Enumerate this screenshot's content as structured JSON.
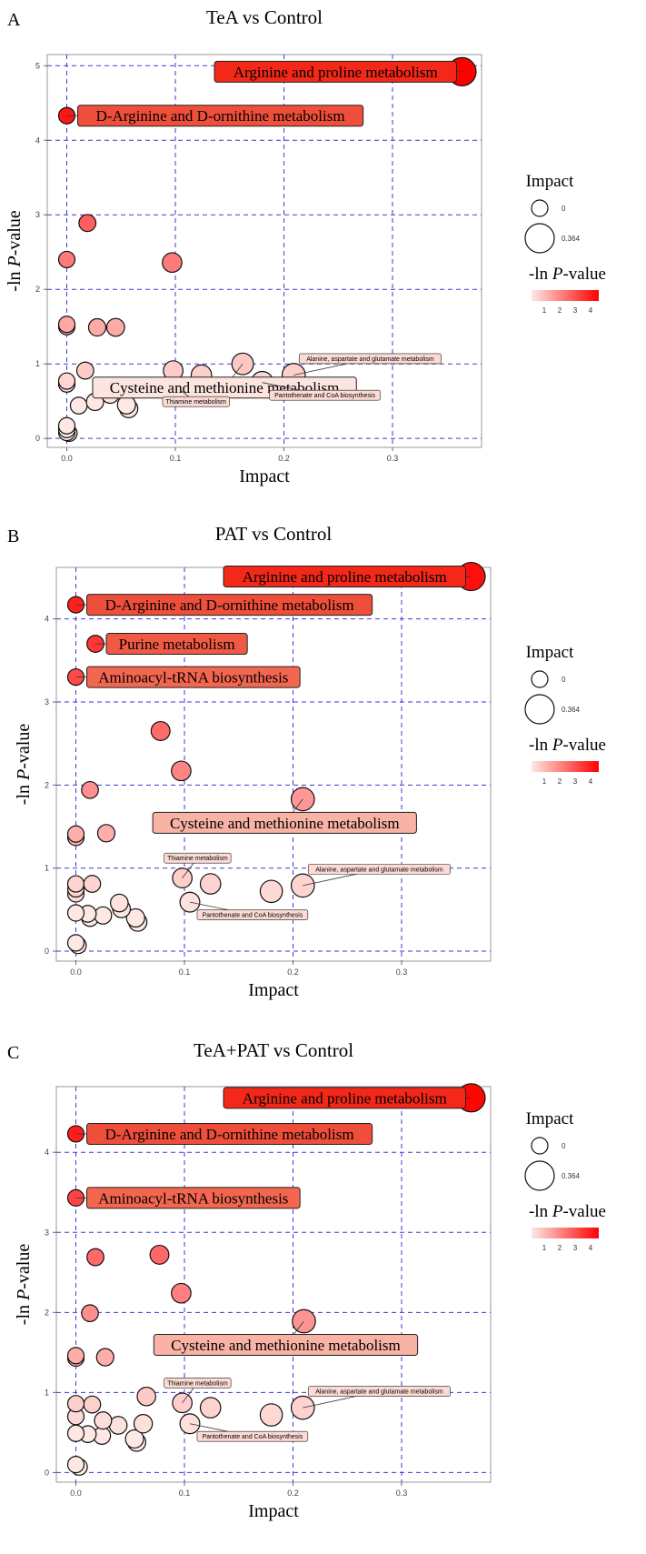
{
  "figure": {
    "legend": {
      "size_title": "Impact",
      "size_values": [
        "0",
        "0.364"
      ],
      "color_title_prefix": "-ln ",
      "color_title_italic": "P",
      "color_title_suffix": "-value",
      "color_ticks": [
        "1",
        "2",
        "3",
        "4"
      ],
      "color_low": "#fde8e4",
      "color_high": "#ff0000"
    },
    "x_axis_label": "Impact",
    "y_axis_label_prefix": "-ln ",
    "y_axis_label_italic": "P",
    "y_axis_label_suffix": "-value"
  },
  "chart_data": [
    {
      "type": "scatter",
      "panel": "A",
      "title": "TeA vs Control",
      "xlabel": "Impact",
      "ylabel": "-ln P-value",
      "xlim": [
        -0.018,
        0.382
      ],
      "ylim": [
        -0.12,
        5.15
      ],
      "xticks": [
        0.0,
        0.1,
        0.2,
        0.3
      ],
      "yticks": [
        0,
        1,
        2,
        3,
        4,
        5
      ],
      "grid": true,
      "legend_position": "right",
      "points": [
        {
          "x": 0.364,
          "y": 4.92
        },
        {
          "x": 0.0,
          "y": 4.33
        },
        {
          "x": 0.019,
          "y": 2.89
        },
        {
          "x": 0.0,
          "y": 2.4
        },
        {
          "x": 0.097,
          "y": 2.36
        },
        {
          "x": 0.0,
          "y": 1.53
        },
        {
          "x": 0.0,
          "y": 1.5
        },
        {
          "x": 0.028,
          "y": 1.49
        },
        {
          "x": 0.045,
          "y": 1.49
        },
        {
          "x": 0.162,
          "y": 1.0
        },
        {
          "x": 0.098,
          "y": 0.91
        },
        {
          "x": 0.017,
          "y": 0.91
        },
        {
          "x": 0.124,
          "y": 0.85
        },
        {
          "x": 0.209,
          "y": 0.85
        },
        {
          "x": 0.18,
          "y": 0.75
        },
        {
          "x": 0.0,
          "y": 0.77
        },
        {
          "x": 0.0,
          "y": 0.73
        },
        {
          "x": 0.105,
          "y": 0.64
        },
        {
          "x": 0.04,
          "y": 0.59
        },
        {
          "x": 0.026,
          "y": 0.49
        },
        {
          "x": 0.011,
          "y": 0.44
        },
        {
          "x": 0.055,
          "y": 0.45
        },
        {
          "x": 0.057,
          "y": 0.4
        },
        {
          "x": 0.0,
          "y": 0.17
        },
        {
          "x": 0.0,
          "y": 0.12
        },
        {
          "x": 0.0,
          "y": 0.08
        },
        {
          "x": 0.002,
          "y": 0.07
        }
      ],
      "labels": [
        {
          "text": "Arginine and proline metabolism",
          "size": "large",
          "color": "#f32818",
          "x": 0.364,
          "y": 4.92
        },
        {
          "text": "D-Arginine and D-ornithine metabolism",
          "size": "large",
          "color": "#ef4f3a",
          "x": 0.0,
          "y": 4.33
        },
        {
          "text": "Cysteine and methionine metabolism",
          "size": "large",
          "color": "#fce4df",
          "x": 0.162,
          "y": 1.0
        },
        {
          "text": "Alanine, aspartate and glutamate metabolism",
          "size": "small",
          "color": "#fbdbd4",
          "x": 0.209,
          "y": 0.85
        },
        {
          "text": "Thiamine metabolism",
          "size": "small",
          "color": "#fbdbd4",
          "x": 0.105,
          "y": 0.64
        },
        {
          "text": "Pantothenate and CoA biosynthesis",
          "size": "small",
          "color": "#fbdbd4",
          "x": 0.18,
          "y": 0.75
        }
      ]
    },
    {
      "type": "scatter",
      "panel": "B",
      "title": "PAT vs Control",
      "xlabel": "Impact",
      "ylabel": "-ln P-value",
      "xlim": [
        -0.018,
        0.382
      ],
      "ylim": [
        -0.12,
        4.62
      ],
      "xticks": [
        0.0,
        0.1,
        0.2,
        0.3
      ],
      "yticks": [
        0,
        1,
        2,
        3,
        4
      ],
      "grid": true,
      "legend_position": "right",
      "points": [
        {
          "x": 0.364,
          "y": 4.51
        },
        {
          "x": 0.0,
          "y": 4.17
        },
        {
          "x": 0.018,
          "y": 3.7
        },
        {
          "x": 0.0,
          "y": 3.3
        },
        {
          "x": 0.078,
          "y": 2.65
        },
        {
          "x": 0.097,
          "y": 2.17
        },
        {
          "x": 0.013,
          "y": 1.94
        },
        {
          "x": 0.209,
          "y": 1.83
        },
        {
          "x": 0.028,
          "y": 1.42
        },
        {
          "x": 0.0,
          "y": 1.41
        },
        {
          "x": 0.0,
          "y": 1.37
        },
        {
          "x": 0.098,
          "y": 0.88
        },
        {
          "x": 0.124,
          "y": 0.81
        },
        {
          "x": 0.0,
          "y": 0.81
        },
        {
          "x": 0.015,
          "y": 0.81
        },
        {
          "x": 0.209,
          "y": 0.79
        },
        {
          "x": 0.0,
          "y": 0.75
        },
        {
          "x": 0.18,
          "y": 0.72
        },
        {
          "x": 0.0,
          "y": 0.69
        },
        {
          "x": 0.105,
          "y": 0.59
        },
        {
          "x": 0.04,
          "y": 0.58
        },
        {
          "x": 0.042,
          "y": 0.51
        },
        {
          "x": 0.0,
          "y": 0.46
        },
        {
          "x": 0.011,
          "y": 0.45
        },
        {
          "x": 0.025,
          "y": 0.43
        },
        {
          "x": 0.013,
          "y": 0.4
        },
        {
          "x": 0.055,
          "y": 0.4
        },
        {
          "x": 0.057,
          "y": 0.35
        },
        {
          "x": 0.0,
          "y": 0.1
        },
        {
          "x": 0.002,
          "y": 0.07
        }
      ],
      "labels": [
        {
          "text": "Arginine and proline metabolism",
          "size": "large",
          "color": "#f32818",
          "x": 0.364,
          "y": 4.51
        },
        {
          "text": "D-Arginine and D-ornithine metabolism",
          "size": "large",
          "color": "#ef4f3a",
          "x": 0.0,
          "y": 4.17
        },
        {
          "text": "Purine metabolism",
          "size": "large",
          "color": "#f05a45",
          "x": 0.018,
          "y": 3.7
        },
        {
          "text": "Aminoacyl-tRNA biosynthesis",
          "size": "large",
          "color": "#f3664f",
          "x": 0.0,
          "y": 3.3
        },
        {
          "text": "Cysteine and methionine metabolism",
          "size": "large",
          "color": "#f8b3a4",
          "x": 0.209,
          "y": 1.83
        },
        {
          "text": "Thiamine metabolism",
          "size": "small",
          "color": "#fbdbd4",
          "x": 0.098,
          "y": 0.88
        },
        {
          "text": "Alanine, aspartate and glutamate metabolism",
          "size": "small",
          "color": "#fbdbd4",
          "x": 0.209,
          "y": 0.79
        },
        {
          "text": "Pantothenate and CoA biosynthesis",
          "size": "small",
          "color": "#fbdbd4",
          "x": 0.105,
          "y": 0.59
        }
      ]
    },
    {
      "type": "scatter",
      "panel": "C",
      "title": "TeA+PAT vs Control",
      "xlabel": "Impact",
      "ylabel": "-ln P-value",
      "xlim": [
        -0.018,
        0.382
      ],
      "ylim": [
        -0.12,
        4.82
      ],
      "xticks": [
        0.0,
        0.1,
        0.2,
        0.3
      ],
      "yticks": [
        0,
        1,
        2,
        3,
        4
      ],
      "grid": true,
      "legend_position": "right",
      "points": [
        {
          "x": 0.364,
          "y": 4.68
        },
        {
          "x": 0.0,
          "y": 4.23
        },
        {
          "x": 0.0,
          "y": 3.43
        },
        {
          "x": 0.077,
          "y": 2.72
        },
        {
          "x": 0.018,
          "y": 2.69
        },
        {
          "x": 0.097,
          "y": 2.24
        },
        {
          "x": 0.013,
          "y": 1.99
        },
        {
          "x": 0.21,
          "y": 1.89
        },
        {
          "x": 0.0,
          "y": 1.46
        },
        {
          "x": 0.0,
          "y": 1.43
        },
        {
          "x": 0.027,
          "y": 1.44
        },
        {
          "x": 0.065,
          "y": 0.95
        },
        {
          "x": 0.098,
          "y": 0.87
        },
        {
          "x": 0.0,
          "y": 0.86
        },
        {
          "x": 0.015,
          "y": 0.85
        },
        {
          "x": 0.124,
          "y": 0.81
        },
        {
          "x": 0.209,
          "y": 0.81
        },
        {
          "x": 0.18,
          "y": 0.72
        },
        {
          "x": 0.0,
          "y": 0.7
        },
        {
          "x": 0.025,
          "y": 0.65
        },
        {
          "x": 0.039,
          "y": 0.59
        },
        {
          "x": 0.062,
          "y": 0.61
        },
        {
          "x": 0.105,
          "y": 0.61
        },
        {
          "x": 0.0,
          "y": 0.49
        },
        {
          "x": 0.011,
          "y": 0.48
        },
        {
          "x": 0.024,
          "y": 0.46
        },
        {
          "x": 0.054,
          "y": 0.42
        },
        {
          "x": 0.056,
          "y": 0.38
        },
        {
          "x": 0.0,
          "y": 0.1
        },
        {
          "x": 0.003,
          "y": 0.07
        }
      ],
      "labels": [
        {
          "text": "Arginine and proline metabolism",
          "size": "large",
          "color": "#f32818",
          "x": 0.364,
          "y": 4.68
        },
        {
          "text": "D-Arginine and D-ornithine metabolism",
          "size": "large",
          "color": "#ef4f3a",
          "x": 0.0,
          "y": 4.23
        },
        {
          "text": "Aminoacyl-tRNA biosynthesis",
          "size": "large",
          "color": "#f3664f",
          "x": 0.0,
          "y": 3.43
        },
        {
          "text": "Cysteine and methionine metabolism",
          "size": "large",
          "color": "#f8b3a4",
          "x": 0.21,
          "y": 1.89
        },
        {
          "text": "Thiamine metabolism",
          "size": "small",
          "color": "#fbdbd4",
          "x": 0.098,
          "y": 0.87
        },
        {
          "text": "Alanine, aspartate and glutamate metabolism",
          "size": "small",
          "color": "#fbdbd4",
          "x": 0.209,
          "y": 0.81
        },
        {
          "text": "Pantothenate and CoA biosynthesis",
          "size": "small",
          "color": "#fbdbd4",
          "x": 0.105,
          "y": 0.61
        }
      ]
    }
  ]
}
